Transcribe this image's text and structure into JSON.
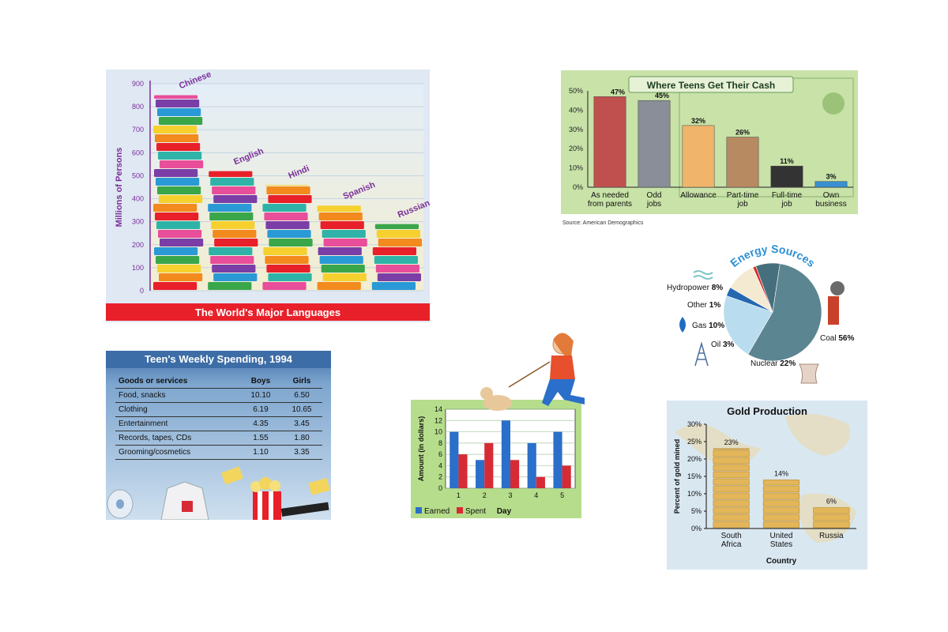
{
  "chart_data": [
    {
      "type": "bar",
      "title": "The World's Major Languages",
      "ylabel": "Millions of Persons",
      "ylim": [
        0,
        900
      ],
      "yticks": [
        0,
        100,
        200,
        300,
        400,
        500,
        600,
        700,
        800,
        900
      ],
      "categories": [
        "Chinese",
        "English",
        "Hindi",
        "Spanish",
        "Russian"
      ],
      "values": [
        850,
        520,
        460,
        370,
        290
      ],
      "colors": {
        "title_bar": "#e8202a",
        "label": "#7a2e9a"
      }
    },
    {
      "type": "bar",
      "title": "Where Teens Get Their Cash",
      "source": "Source: American Demographics",
      "ylim": [
        0,
        50
      ],
      "yticks": [
        "0%",
        "10%",
        "20%",
        "30%",
        "40%",
        "50%"
      ],
      "categories": [
        [
          "As needed",
          "from parents"
        ],
        [
          "Odd",
          "jobs"
        ],
        [
          "Allowance"
        ],
        [
          "Part-time",
          "job"
        ],
        [
          "Full-time",
          "job"
        ],
        [
          "Own",
          "business"
        ]
      ],
      "values": [
        47,
        45,
        32,
        26,
        11,
        3
      ],
      "value_labels": [
        "47%",
        "45%",
        "32%",
        "26%",
        "11%",
        "3%"
      ],
      "colors": {
        "background": "#c8e2a8",
        "bars": [
          "#c0504d",
          "#8a8e98",
          "#f0b46a",
          "#b88a62",
          "#333333",
          "#3a8fd0"
        ]
      }
    },
    {
      "type": "pie",
      "title": "Energy Sources",
      "slices": [
        {
          "label": "Coal",
          "value": 56,
          "display": "56%",
          "color": "#5b8591"
        },
        {
          "label": "Nuclear",
          "value": 22,
          "display": "22%",
          "color": "#b9dcef"
        },
        {
          "label": "Oil",
          "value": 3,
          "display": "3%",
          "color": "#2568b0"
        },
        {
          "label": "Gas",
          "value": 10,
          "display": "10%",
          "color": "#f4ead2"
        },
        {
          "label": "Other",
          "value": 1,
          "display": "1%",
          "color": "#d82626"
        },
        {
          "label": "Hydropower",
          "value": 8,
          "display": "8%",
          "color": "#466f7d"
        }
      ]
    },
    {
      "type": "table",
      "title": "Teen's Weekly Spending, 1994",
      "columns": [
        "Goods or services",
        "Boys",
        "Girls"
      ],
      "rows": [
        [
          "Food, snacks",
          "10.10",
          "6.50"
        ],
        [
          "Clothing",
          "6.19",
          "10.65"
        ],
        [
          "Entertainment",
          "4.35",
          "3.45"
        ],
        [
          "Records, tapes, CDs",
          "1.55",
          "1.80"
        ],
        [
          "Grooming/cosmetics",
          "1.10",
          "3.35"
        ]
      ]
    },
    {
      "type": "bar",
      "xlabel": "Day",
      "ylabel": "Amount (in dollars)",
      "ylim": [
        0,
        14
      ],
      "yticks": [
        0,
        2,
        4,
        6,
        8,
        10,
        12,
        14
      ],
      "categories": [
        "1",
        "2",
        "3",
        "4",
        "5"
      ],
      "series": [
        {
          "name": "Earned",
          "values": [
            10,
            5,
            12,
            8,
            10
          ],
          "color": "#2a6fc9"
        },
        {
          "name": "Spent",
          "values": [
            6,
            8,
            5,
            2,
            4
          ],
          "color": "#d62b35"
        }
      ],
      "legend": "bottom-left"
    },
    {
      "type": "bar",
      "title": "Gold Production",
      "xlabel": "Country",
      "ylabel": "Percent of gold mined",
      "ylim": [
        0,
        30
      ],
      "yticks": [
        "0%",
        "5%",
        "10%",
        "15%",
        "20%",
        "25%",
        "30%"
      ],
      "categories": [
        [
          "South",
          "Africa"
        ],
        [
          "United",
          "States"
        ],
        [
          "Russia"
        ]
      ],
      "values": [
        23,
        14,
        6
      ],
      "value_labels": [
        "23%",
        "14%",
        "6%"
      ],
      "colors": {
        "bars": "#e3b65a",
        "background": "#d9e7f1"
      }
    }
  ]
}
